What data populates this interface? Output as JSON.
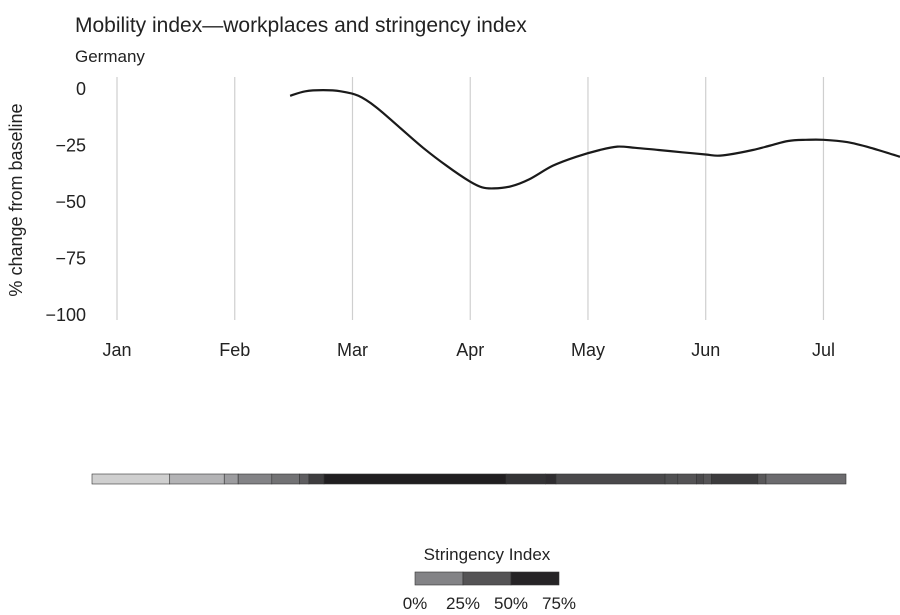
{
  "chart_data": {
    "type": "line",
    "title": "Mobility index—workplaces and stringency index",
    "subtitle": "Germany",
    "ylabel": "% change from baseline",
    "xlabel": "",
    "x_ticks": [
      "Jan",
      "Feb",
      "Mar",
      "Apr",
      "May",
      "Jun",
      "Jul"
    ],
    "y_ticks": [
      0,
      -25,
      -50,
      -75,
      -100
    ],
    "y_tick_labels": [
      "0",
      "−25",
      "−50",
      "−75",
      "−100"
    ],
    "ylim": [
      -100,
      0
    ],
    "xlim": [
      0,
      6.65
    ],
    "grid": "vertical",
    "series": [
      {
        "x": [
          1.47,
          1.6,
          1.75,
          1.9,
          2.05,
          2.2,
          2.4,
          2.6,
          2.8,
          3.0,
          3.1,
          3.2,
          3.35,
          3.5,
          3.7,
          3.9,
          4.1,
          4.25,
          4.4,
          4.6,
          4.8,
          5.0,
          5.1,
          5.2,
          5.4,
          5.55,
          5.7,
          5.85,
          6.0,
          6.2,
          6.4,
          6.65
        ],
        "values": [
          -3,
          -1,
          -0.5,
          -1,
          -3,
          -8,
          -17,
          -26,
          -34,
          -41,
          -43.5,
          -44,
          -43,
          -40,
          -34,
          -30,
          -27,
          -25.5,
          -26,
          -27,
          -28,
          -29,
          -29.5,
          -29,
          -27,
          -25,
          -23,
          -22.5,
          -22.5,
          -23.5,
          -26,
          -30
        ]
      }
    ],
    "stringency": {
      "title": "Stringency Index",
      "legend_labels": [
        "0%",
        "25%",
        "50%",
        "75%"
      ],
      "legend_colors": [
        "#838386",
        "#545355",
        "#262426"
      ],
      "segments": [
        {
          "from": 0,
          "to": 0.67,
          "value": 5,
          "color": "#cfcfcf"
        },
        {
          "from": 0.67,
          "to": 1.14,
          "value": 15,
          "color": "#b3b3b5"
        },
        {
          "from": 1.14,
          "to": 1.26,
          "value": 30,
          "color": "#9c9c9f"
        },
        {
          "from": 1.26,
          "to": 1.55,
          "value": 35,
          "color": "#838386"
        },
        {
          "from": 1.55,
          "to": 1.79,
          "value": 42,
          "color": "#727274"
        },
        {
          "from": 1.79,
          "to": 1.87,
          "value": 48,
          "color": "#5e5d60"
        },
        {
          "from": 1.87,
          "to": 2.0,
          "value": 60,
          "color": "#3e3d3f"
        },
        {
          "from": 2.0,
          "to": 3.57,
          "value": 78,
          "color": "#201e20"
        },
        {
          "from": 3.57,
          "to": 3.91,
          "value": 70,
          "color": "#343335"
        },
        {
          "from": 3.91,
          "to": 4.0,
          "value": 72,
          "color": "#2f2d30"
        },
        {
          "from": 4.0,
          "to": 4.94,
          "value": 64,
          "color": "#4a494b"
        },
        {
          "from": 4.94,
          "to": 5.05,
          "value": 62,
          "color": "#505052"
        },
        {
          "from": 5.05,
          "to": 5.21,
          "value": 60,
          "color": "#545355"
        },
        {
          "from": 5.21,
          "to": 5.27,
          "value": 64,
          "color": "#4a494b"
        },
        {
          "from": 5.27,
          "to": 5.34,
          "value": 60,
          "color": "#565557"
        },
        {
          "from": 5.34,
          "to": 5.74,
          "value": 66,
          "color": "#3c3b3d"
        },
        {
          "from": 5.74,
          "to": 5.81,
          "value": 58,
          "color": "#59585a"
        },
        {
          "from": 5.81,
          "to": 6.5,
          "value": 52,
          "color": "#6c6b6e"
        }
      ]
    }
  }
}
